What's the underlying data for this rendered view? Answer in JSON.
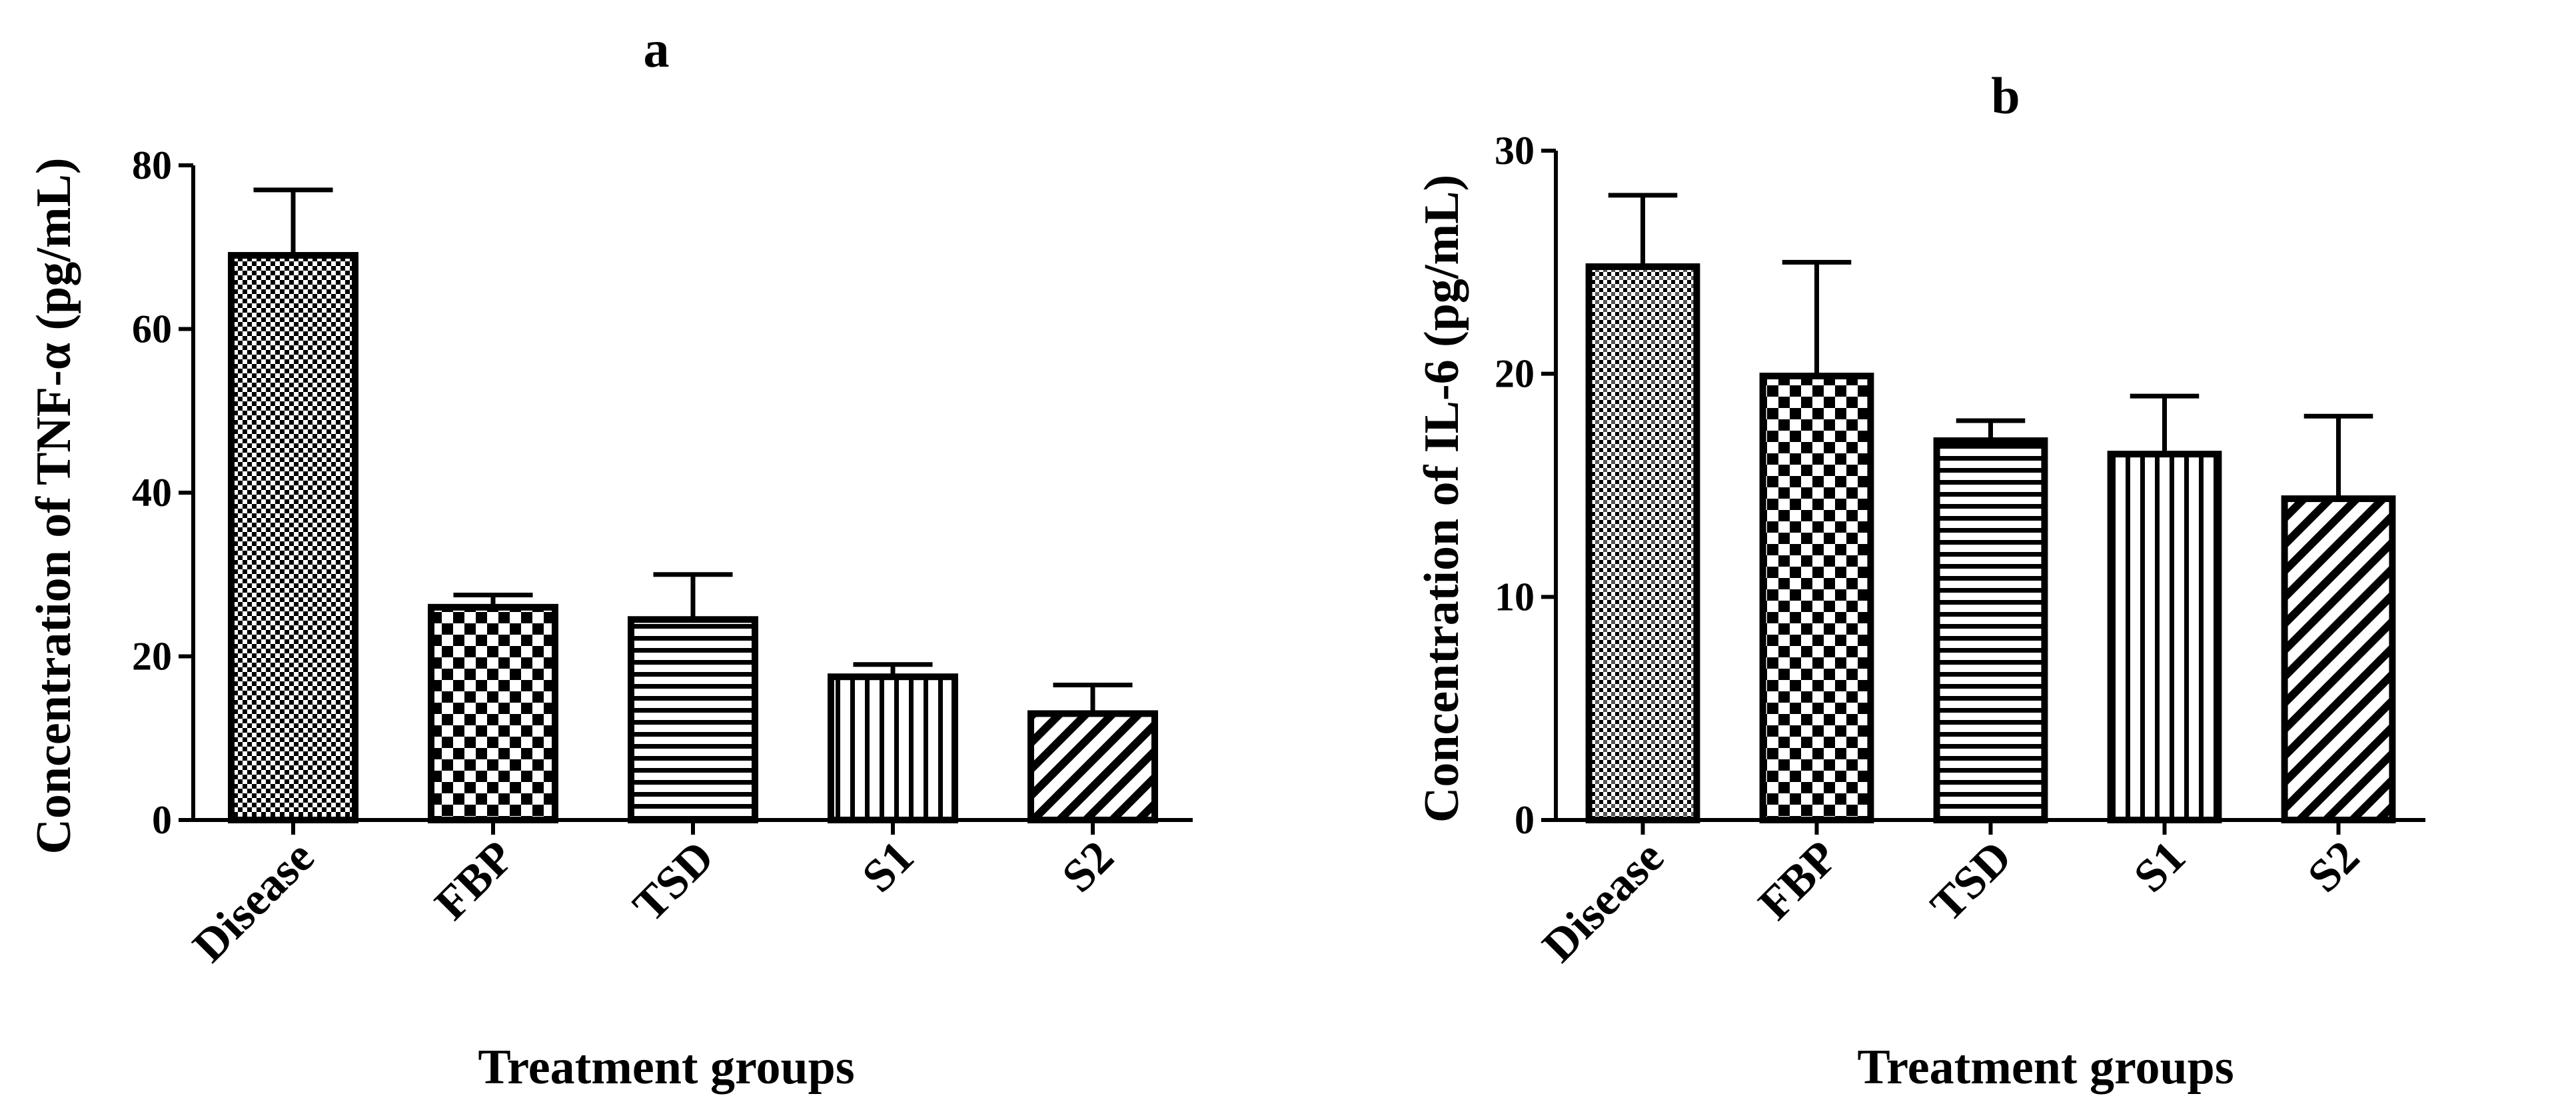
{
  "chart_data": [
    {
      "type": "bar",
      "panel_label": "a",
      "title": "",
      "xlabel": "Treatment groups",
      "ylabel": "Concentration of TNF-α (pg/mL)",
      "categories": [
        "Disease",
        "FBP",
        "TSD",
        "S1",
        "S2"
      ],
      "values": [
        69,
        26,
        24.5,
        17.5,
        13
      ],
      "errors": [
        8,
        1.5,
        5.5,
        1.5,
        3.5
      ],
      "ylim": [
        0,
        80
      ],
      "yticks": [
        0,
        20,
        40,
        60,
        80
      ],
      "patterns": [
        "fine-check",
        "checker",
        "h-lines",
        "v-lines",
        "diag"
      ],
      "grid": false,
      "legend": "none"
    },
    {
      "type": "bar",
      "panel_label": "b",
      "title": "",
      "xlabel": "Treatment groups",
      "ylabel": "Concentration of IL-6 (pg/mL)",
      "categories": [
        "Disease",
        "FBP",
        "TSD",
        "S1",
        "S2"
      ],
      "values": [
        24.8,
        19.9,
        17,
        16.4,
        14.4
      ],
      "errors": [
        3.2,
        5.1,
        0.9,
        2.6,
        3.7
      ],
      "ylim": [
        0,
        30
      ],
      "yticks": [
        0,
        10,
        20,
        30
      ],
      "patterns": [
        "fine-dots",
        "checker",
        "h-lines",
        "v-lines",
        "diag"
      ],
      "grid": false,
      "legend": "none"
    }
  ]
}
